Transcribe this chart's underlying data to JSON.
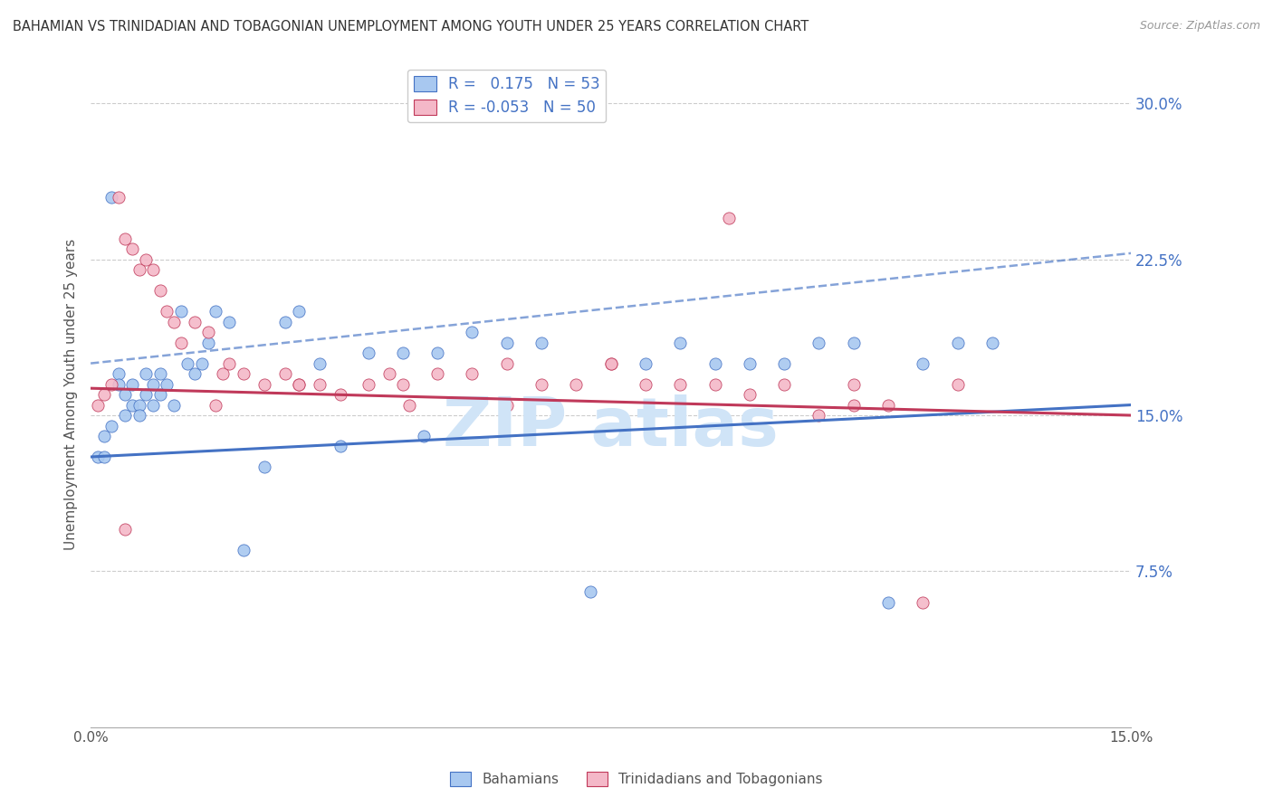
{
  "title": "BAHAMIAN VS TRINIDADIAN AND TOBAGONIAN UNEMPLOYMENT AMONG YOUTH UNDER 25 YEARS CORRELATION CHART",
  "source": "Source: ZipAtlas.com",
  "ylabel": "Unemployment Among Youth under 25 years",
  "xlim": [
    0.0,
    0.15
  ],
  "ylim": [
    0.0,
    0.32
  ],
  "yticks": [
    0.075,
    0.15,
    0.225,
    0.3
  ],
  "ytick_labels": [
    "7.5%",
    "15.0%",
    "22.5%",
    "30.0%"
  ],
  "xticks": [
    0.0,
    0.05,
    0.1,
    0.15
  ],
  "xtick_labels": [
    "0.0%",
    "",
    "",
    "15.0%"
  ],
  "r_bahamian": 0.175,
  "n_bahamian": 53,
  "r_trinidadian": -0.053,
  "n_trinidadian": 50,
  "color_bahamian": "#a8c8f0",
  "color_trinidadian": "#f4b8c8",
  "line_color_bahamian": "#4472c4",
  "line_color_trinidadian": "#c0395a",
  "watermark_color": "#d0e4f7",
  "legend_label_bahamian": "Bahamians",
  "legend_label_trinidadian": "Trinidadians and Tobagonians",
  "bah_line_x0": 0.0,
  "bah_line_y0": 0.13,
  "bah_line_x1": 0.15,
  "bah_line_y1": 0.155,
  "tri_line_x0": 0.0,
  "tri_line_y0": 0.163,
  "tri_line_x1": 0.15,
  "tri_line_y1": 0.15,
  "dash_line_x0": 0.0,
  "dash_line_y0": 0.175,
  "dash_line_x1": 0.15,
  "dash_line_y1": 0.228,
  "bah_scatter_x": [
    0.001,
    0.002,
    0.002,
    0.003,
    0.003,
    0.004,
    0.004,
    0.005,
    0.005,
    0.006,
    0.006,
    0.007,
    0.007,
    0.008,
    0.008,
    0.009,
    0.009,
    0.01,
    0.01,
    0.011,
    0.012,
    0.013,
    0.014,
    0.015,
    0.016,
    0.017,
    0.018,
    0.02,
    0.022,
    0.025,
    0.028,
    0.03,
    0.033,
    0.036,
    0.04,
    0.045,
    0.048,
    0.05,
    0.055,
    0.06,
    0.065,
    0.072,
    0.08,
    0.085,
    0.09,
    0.095,
    0.1,
    0.105,
    0.11,
    0.115,
    0.12,
    0.125,
    0.13
  ],
  "bah_scatter_y": [
    0.13,
    0.13,
    0.14,
    0.145,
    0.255,
    0.17,
    0.165,
    0.16,
    0.15,
    0.155,
    0.165,
    0.155,
    0.15,
    0.16,
    0.17,
    0.155,
    0.165,
    0.16,
    0.17,
    0.165,
    0.155,
    0.2,
    0.175,
    0.17,
    0.175,
    0.185,
    0.2,
    0.195,
    0.085,
    0.125,
    0.195,
    0.2,
    0.175,
    0.135,
    0.18,
    0.18,
    0.14,
    0.18,
    0.19,
    0.185,
    0.185,
    0.065,
    0.175,
    0.185,
    0.175,
    0.175,
    0.175,
    0.185,
    0.185,
    0.06,
    0.175,
    0.185,
    0.185
  ],
  "tri_scatter_x": [
    0.001,
    0.002,
    0.003,
    0.004,
    0.005,
    0.006,
    0.007,
    0.008,
    0.009,
    0.01,
    0.011,
    0.012,
    0.013,
    0.015,
    0.017,
    0.019,
    0.02,
    0.022,
    0.025,
    0.028,
    0.03,
    0.033,
    0.036,
    0.04,
    0.043,
    0.046,
    0.05,
    0.055,
    0.06,
    0.065,
    0.07,
    0.075,
    0.08,
    0.085,
    0.092,
    0.095,
    0.1,
    0.105,
    0.11,
    0.115,
    0.12,
    0.125,
    0.11,
    0.09,
    0.075,
    0.06,
    0.045,
    0.03,
    0.018,
    0.005
  ],
  "tri_scatter_y": [
    0.155,
    0.16,
    0.165,
    0.255,
    0.235,
    0.23,
    0.22,
    0.225,
    0.22,
    0.21,
    0.2,
    0.195,
    0.185,
    0.195,
    0.19,
    0.17,
    0.175,
    0.17,
    0.165,
    0.17,
    0.165,
    0.165,
    0.16,
    0.165,
    0.17,
    0.155,
    0.17,
    0.17,
    0.175,
    0.165,
    0.165,
    0.175,
    0.165,
    0.165,
    0.245,
    0.16,
    0.165,
    0.15,
    0.155,
    0.155,
    0.06,
    0.165,
    0.165,
    0.165,
    0.175,
    0.155,
    0.165,
    0.165,
    0.155,
    0.095
  ]
}
